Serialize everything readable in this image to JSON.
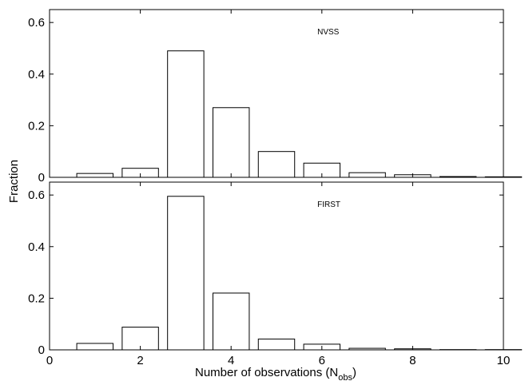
{
  "chart_data": {
    "type": "bar",
    "xlabel": "Number of observations (N",
    "xlabel_sub": "obs",
    "xlabel_end": ")",
    "ylabel": "Fraction",
    "xlim": [
      0,
      10
    ],
    "x_ticks": [
      "0",
      "2",
      "4",
      "6",
      "8",
      "10"
    ],
    "grid": false,
    "panels": [
      {
        "label": "NVSS",
        "ylim": [
          0,
          0.65
        ],
        "y_ticks": [
          "0",
          "0.2",
          "0.4",
          "0.6"
        ],
        "x": [
          1,
          2,
          3,
          4,
          5,
          6,
          7,
          8,
          9,
          10
        ],
        "values": [
          0.015,
          0.035,
          0.49,
          0.27,
          0.1,
          0.055,
          0.018,
          0.01,
          0.003,
          0.002
        ]
      },
      {
        "label": "FIRST",
        "ylim": [
          0,
          0.65
        ],
        "y_ticks": [
          "0",
          "0.2",
          "0.4",
          "0.6"
        ],
        "x": [
          1,
          2,
          3,
          4,
          5,
          6,
          7,
          8,
          9,
          10
        ],
        "values": [
          0.025,
          0.088,
          0.595,
          0.22,
          0.042,
          0.022,
          0.006,
          0.004,
          0.001,
          0.001
        ]
      }
    ]
  }
}
